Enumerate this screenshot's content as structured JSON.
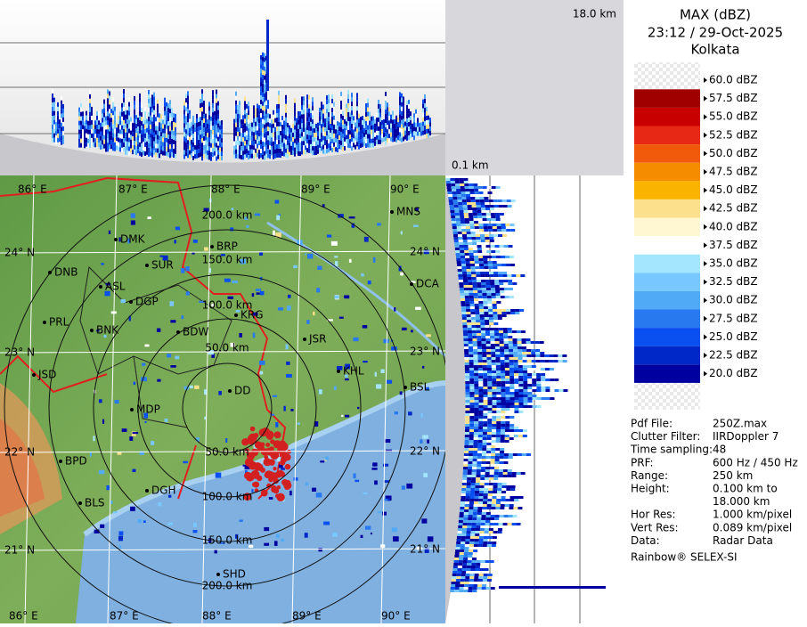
{
  "header": {
    "title": "MAX (dBZ)",
    "datetime": "23:12 / 29-Oct-2025",
    "location": "Kolkata"
  },
  "height_labels": {
    "top": "18.0 km",
    "bottom": "0.1 km"
  },
  "legend": [
    {
      "label": "60.0 dBZ",
      "color": "#f4f4f4"
    },
    {
      "label": "57.5 dBZ",
      "color": "#a00000"
    },
    {
      "label": "55.0 dBZ",
      "color": "#c80000"
    },
    {
      "label": "52.5 dBZ",
      "color": "#e62814"
    },
    {
      "label": "50.0 dBZ",
      "color": "#f05a0a"
    },
    {
      "label": "47.5 dBZ",
      "color": "#f58c00"
    },
    {
      "label": "45.0 dBZ",
      "color": "#fab400"
    },
    {
      "label": "42.5 dBZ",
      "color": "#fde08c"
    },
    {
      "label": "40.0 dBZ",
      "color": "#fff6d2"
    },
    {
      "label": "37.5 dBZ",
      "color": "#ffffff"
    },
    {
      "label": "35.0 dBZ",
      "color": "#a5e6ff"
    },
    {
      "label": "32.5 dBZ",
      "color": "#78c8ff"
    },
    {
      "label": "30.0 dBZ",
      "color": "#50aaf5"
    },
    {
      "label": "27.5 dBZ",
      "color": "#2878f0"
    },
    {
      "label": "25.0 dBZ",
      "color": "#0a50f0"
    },
    {
      "label": "22.5 dBZ",
      "color": "#0028c8"
    },
    {
      "label": "20.0 dBZ",
      "color": "#0000a0"
    }
  ],
  "info": [
    {
      "key": "Pdf File:",
      "value": [
        "250Z.max"
      ]
    },
    {
      "key": "Clutter Filter:",
      "value": [
        "IIRDoppler 7"
      ]
    },
    {
      "key": "Time sampling:",
      "value": [
        "48"
      ]
    },
    {
      "key": "PRF:",
      "value": [
        "600 Hz / 450 Hz"
      ]
    },
    {
      "key": "Range:",
      "value": [
        "250 km"
      ]
    },
    {
      "key": "Height:",
      "value": [
        "0.100 km to",
        "18.000 km"
      ]
    },
    {
      "key": "Hor Res:",
      "value": [
        "1.000 km/pixel"
      ]
    },
    {
      "key": "Vert Res:",
      "value": [
        "0.089 km/pixel"
      ]
    },
    {
      "key": "Data:",
      "value": [
        "Radar Data"
      ]
    }
  ],
  "credit": "Rainbow® SELEX-SI",
  "map": {
    "longitudes": [
      "86° E",
      "87° E",
      "88° E",
      "89° E",
      "90° E"
    ],
    "latitudes": [
      "24° N",
      "23° N",
      "22° N",
      "21° N"
    ],
    "ranges": [
      "50.0 km",
      "100.0 km",
      "150.0 km",
      "200.0 km"
    ],
    "stations": [
      "MNS",
      "DMK",
      "BRP",
      "DNB",
      "SUR",
      "DCA",
      "ASL",
      "DGP",
      "KRG",
      "PRL",
      "BNK",
      "BDW",
      "JSR",
      "KHL",
      "JSD",
      "BSL",
      "MDP",
      "DD",
      "BPD",
      "DGH",
      "BLS",
      "SHD"
    ]
  }
}
